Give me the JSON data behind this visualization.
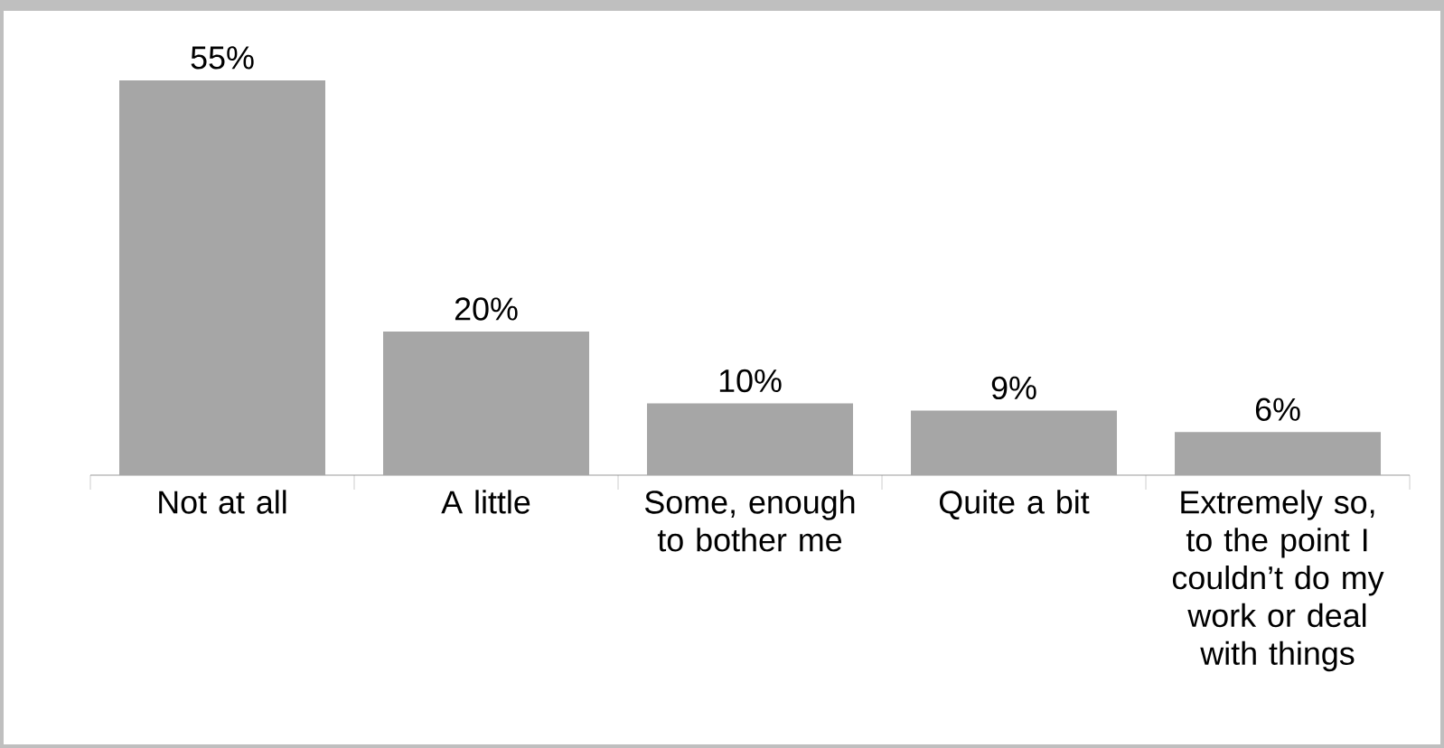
{
  "chart_data": {
    "type": "bar",
    "categories": [
      "Not at all",
      "A little",
      "Some, enough to bother me",
      "Quite a bit",
      "Extremely so, to the point I couldn’t do my work or deal with things"
    ],
    "values": [
      55,
      20,
      10,
      9,
      6
    ],
    "value_labels": [
      "55%",
      "20%",
      "10%",
      "9%",
      "6%"
    ],
    "color": "#a6a6a6"
  }
}
